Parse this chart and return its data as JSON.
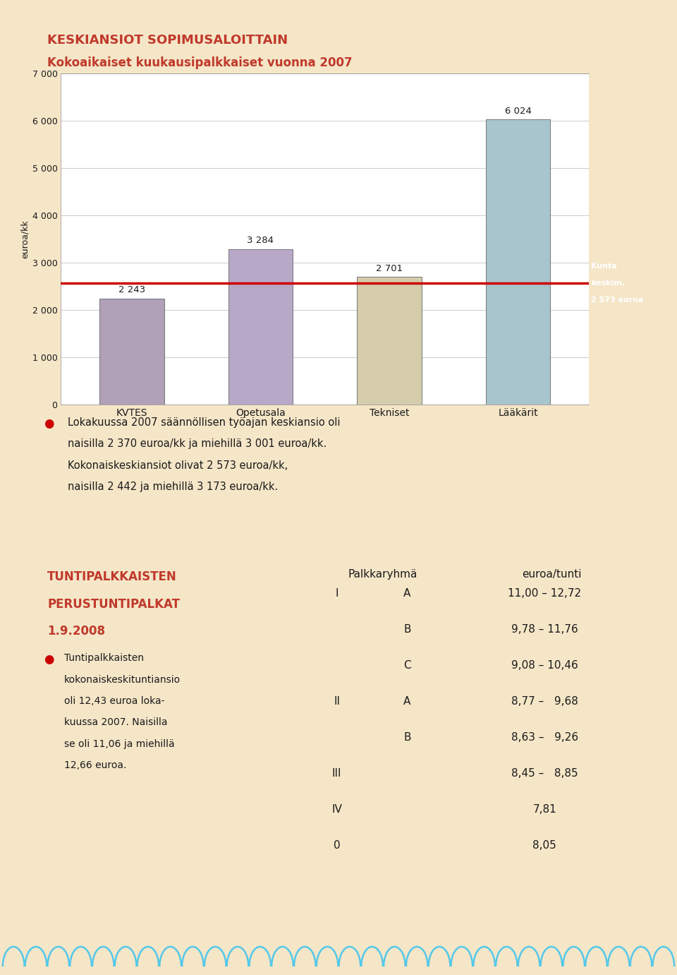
{
  "bg_color": "#f5e6c8",
  "title_line1": "KESKIANSIOT SOPIMUSALOITTAIN",
  "title_line2": "Kokoaikaiset kuukausipalkkaiset vuonna 2007",
  "title_color": "#c0392b",
  "chart_bg": "#ffffff",
  "ylabel": "euroa/kk",
  "categories": [
    "KVTES",
    "Opetusala",
    "Tekniset",
    "Lääkärit"
  ],
  "values": [
    2243,
    3284,
    2701,
    6024
  ],
  "bar_colors": [
    "#b0a0b8",
    "#b8a8c8",
    "#d4ccaa",
    "#a8c4cc"
  ],
  "ref_line_value": 2573,
  "ref_label_line1": "Kunta",
  "ref_label_line2": "keskim.",
  "ref_label_line3": "2 573 euroa",
  "ref_label_bg": "#c0392b",
  "ref_label_color": "#ffffff",
  "bar_label_values": [
    "2 243",
    "3 284",
    "2 701",
    "6 024"
  ],
  "ylim": [
    0,
    7000
  ],
  "yticks": [
    0,
    1000,
    2000,
    3000,
    4000,
    5000,
    6000,
    7000
  ],
  "ytick_labels": [
    "0",
    "1 000",
    "2 000",
    "3 000",
    "4 000",
    "5 000",
    "6 000",
    "7 000"
  ],
  "bullet1_line1": "Lokakuussa 2007 säännöllisen työajan keskiansio oli",
  "bullet1_line2": "naisilla 2 370 euroa/kk ja miehillä 3 001 euroa/kk.",
  "bullet1_line3": "Kokonaiskeskiansiot olivat 2 573 euroa/kk,",
  "bullet1_line4": "naisilla 2 442 ja miehillä 3 173 euroa/kk.",
  "section2_t1": "TUNTIPALKKAISTEN",
  "section2_t2": "PERUSTUNTIPALKAT",
  "section2_t3": "1.9.2008",
  "bullet2_lines": [
    "Tuntipalkkaisten",
    "kokonaiskeskituntiansio",
    "oli 12,43 euroa loka-",
    "kuussa 2007. Naisilla",
    "se oli 11,06 ja miehillä",
    "12,66 euroa."
  ],
  "table_header_col1": "Palkkaryhmä",
  "table_header_col2": "euroa/tunti",
  "table_rows": [
    [
      "I",
      "A",
      "11,00 – 12,72"
    ],
    [
      "",
      "B",
      "9,78 – 11,76"
    ],
    [
      "",
      "C",
      "9,08 – 10,46"
    ],
    [
      "II",
      "A",
      "8,77 –   9,68"
    ],
    [
      "",
      "B",
      "8,63 –   9,26"
    ],
    [
      "III",
      "",
      "8,45 –   8,85"
    ],
    [
      "IV",
      "",
      "7,81"
    ],
    [
      "0",
      "",
      "8,05"
    ]
  ],
  "table_bg": "#ffffff",
  "bottom_bar_color": "#2ab0d8",
  "body_text_color": "#1a1a1a",
  "section_title_color": "#c0392b",
  "bullet_color": "#cc0000"
}
